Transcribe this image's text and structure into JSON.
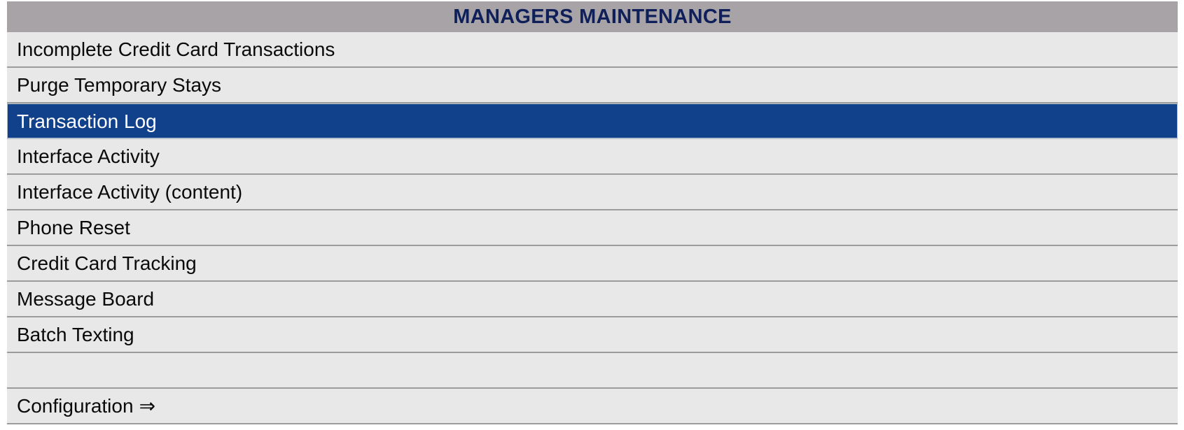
{
  "header": {
    "title": "MANAGERS MAINTENANCE"
  },
  "menu": {
    "items": [
      {
        "label": "Incomplete Credit Card Transactions"
      },
      {
        "label": "Purge Temporary Stays"
      },
      {
        "label": "Transaction Log",
        "selected": true
      },
      {
        "label": "Interface Activity"
      },
      {
        "label": "Interface Activity (content)"
      },
      {
        "label": "Phone Reset"
      },
      {
        "label": "Credit Card Tracking"
      },
      {
        "label": "Message Board"
      },
      {
        "label": "Batch Texting"
      },
      {
        "label": ""
      },
      {
        "label": "Configuration",
        "suffix": "⇒"
      }
    ]
  },
  "colors": {
    "header_bg": "#a7a3a6",
    "header_text": "#0f1f59",
    "item_bg": "#e8e8e8",
    "selected_bg": "#12418b",
    "selected_text": "#ffffff",
    "divider": "#9c9c9c"
  }
}
